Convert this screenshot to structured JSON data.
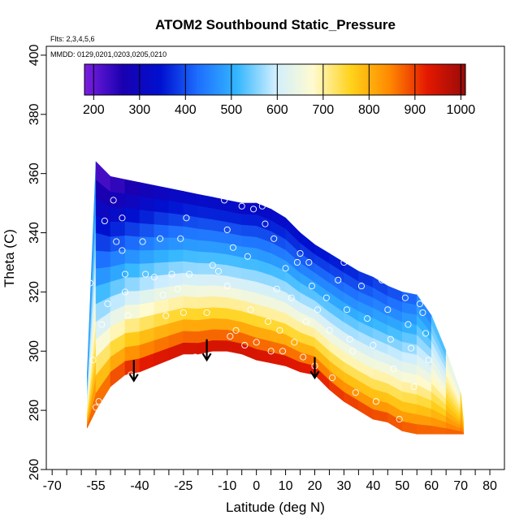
{
  "chart_data": {
    "type": "heatmap",
    "title": "ATOM2 Southbound Static_Pressure",
    "notes": {
      "flights": "Flts: 2,3,4,5,6",
      "dates": "MMDD: 0129,0201,0203,0205,0210"
    },
    "xlabel": "Latitude (deg N)",
    "ylabel": "Theta (C)",
    "xlim": [
      -72,
      85
    ],
    "ylim": [
      260,
      403
    ],
    "x_ticks": [
      -70,
      -55,
      -40,
      -25,
      -10,
      0,
      10,
      20,
      30,
      40,
      50,
      60,
      70,
      80
    ],
    "x_minor_ticks": [
      -65,
      -60,
      -50,
      -45,
      -35,
      -30,
      -20,
      -15,
      -5,
      5,
      15,
      25,
      35,
      45,
      55,
      65,
      75
    ],
    "y_ticks": [
      260,
      280,
      300,
      320,
      340,
      360,
      380,
      400
    ],
    "colorbar": {
      "range": [
        180,
        1010
      ],
      "ticks": [
        200,
        300,
        400,
        500,
        600,
        700,
        800,
        900,
        1000
      ],
      "colors": [
        "#7b1fe0",
        "#1a00b0",
        "#0010d0",
        "#1e70ff",
        "#33b6ff",
        "#cfeeff",
        "#fffbd0",
        "#ffd21a",
        "#ff8a00",
        "#e41800",
        "#980a0a"
      ],
      "placement": "top"
    },
    "grid": false,
    "profile": {
      "latitude": [
        -58,
        -55,
        -50,
        -45,
        -40,
        -35,
        -30,
        -25,
        -20,
        -15,
        -10,
        -5,
        0,
        5,
        10,
        15,
        20,
        25,
        30,
        35,
        40,
        45,
        50,
        55,
        60,
        65,
        70,
        71
      ],
      "theta_top": [
        292,
        364,
        359,
        358,
        357,
        356,
        355,
        354,
        353,
        352,
        351,
        350,
        350,
        348,
        345,
        340,
        336,
        333,
        330,
        327,
        325,
        322,
        320,
        319,
        312,
        300,
        286,
        276
      ],
      "theta_bottom": [
        274,
        280,
        288,
        292,
        293,
        295,
        297,
        299,
        299,
        300,
        300,
        299,
        297,
        296,
        295,
        293,
        292,
        287,
        283,
        280,
        277,
        276,
        273,
        272,
        272,
        272,
        272,
        272
      ],
      "pressure_at_top": [
        720,
        200,
        215,
        235,
        250,
        275,
        290,
        300,
        305,
        305,
        305,
        305,
        300,
        305,
        310,
        320,
        330,
        335,
        345,
        355,
        370,
        380,
        395,
        420,
        470,
        560,
        700,
        820
      ],
      "pressure_at_bottom": [
        900,
        910,
        930,
        960,
        980,
        990,
        995,
        1000,
        1000,
        1000,
        1000,
        1000,
        1000,
        995,
        990,
        985,
        980,
        960,
        950,
        940,
        935,
        930,
        920,
        915,
        905,
        900,
        890,
        880
      ]
    },
    "observations": [
      {
        "x": -57,
        "y": 323
      },
      {
        "x": -56,
        "y": 297
      },
      {
        "x": -55,
        "y": 281
      },
      {
        "x": -54,
        "y": 283
      },
      {
        "x": -53,
        "y": 309
      },
      {
        "x": -51,
        "y": 316
      },
      {
        "x": -52,
        "y": 344
      },
      {
        "x": -49,
        "y": 351
      },
      {
        "x": -48,
        "y": 337
      },
      {
        "x": -46,
        "y": 345
      },
      {
        "x": -46,
        "y": 334
      },
      {
        "x": -45,
        "y": 326
      },
      {
        "x": -45,
        "y": 320
      },
      {
        "x": -44,
        "y": 312
      },
      {
        "x": -43,
        "y": 292
      },
      {
        "x": -39,
        "y": 337
      },
      {
        "x": -38,
        "y": 326
      },
      {
        "x": -36,
        "y": 292
      },
      {
        "x": -35,
        "y": 325
      },
      {
        "x": -33,
        "y": 338
      },
      {
        "x": -32,
        "y": 319
      },
      {
        "x": -31,
        "y": 312
      },
      {
        "x": -30,
        "y": 295
      },
      {
        "x": -29,
        "y": 326
      },
      {
        "x": -27,
        "y": 321
      },
      {
        "x": -26,
        "y": 338
      },
      {
        "x": -25,
        "y": 313
      },
      {
        "x": -24,
        "y": 345
      },
      {
        "x": -23,
        "y": 326
      },
      {
        "x": -21,
        "y": 298
      },
      {
        "x": -17,
        "y": 313
      },
      {
        "x": -15,
        "y": 329
      },
      {
        "x": -13,
        "y": 327
      },
      {
        "x": -11,
        "y": 351
      },
      {
        "x": -10,
        "y": 341
      },
      {
        "x": -10,
        "y": 322
      },
      {
        "x": -9,
        "y": 305
      },
      {
        "x": -8,
        "y": 335
      },
      {
        "x": -7,
        "y": 307
      },
      {
        "x": -5,
        "y": 349
      },
      {
        "x": -4,
        "y": 302
      },
      {
        "x": -3,
        "y": 332
      },
      {
        "x": -2,
        "y": 314
      },
      {
        "x": -1,
        "y": 348
      },
      {
        "x": 0,
        "y": 303
      },
      {
        "x": 2,
        "y": 349
      },
      {
        "x": 3,
        "y": 343
      },
      {
        "x": 4,
        "y": 310
      },
      {
        "x": 5,
        "y": 300
      },
      {
        "x": 6,
        "y": 338
      },
      {
        "x": 7,
        "y": 321
      },
      {
        "x": 8,
        "y": 307
      },
      {
        "x": 9,
        "y": 300
      },
      {
        "x": 10,
        "y": 328
      },
      {
        "x": 11,
        "y": 348
      },
      {
        "x": 12,
        "y": 318
      },
      {
        "x": 13,
        "y": 303
      },
      {
        "x": 14,
        "y": 330
      },
      {
        "x": 15,
        "y": 333
      },
      {
        "x": 16,
        "y": 298
      },
      {
        "x": 17,
        "y": 310
      },
      {
        "x": 18,
        "y": 330
      },
      {
        "x": 19,
        "y": 322
      },
      {
        "x": 20,
        "y": 295
      },
      {
        "x": 21,
        "y": 314
      },
      {
        "x": 23,
        "y": 336
      },
      {
        "x": 24,
        "y": 318
      },
      {
        "x": 25,
        "y": 307
      },
      {
        "x": 26,
        "y": 291
      },
      {
        "x": 28,
        "y": 324
      },
      {
        "x": 30,
        "y": 330
      },
      {
        "x": 31,
        "y": 314
      },
      {
        "x": 32,
        "y": 304
      },
      {
        "x": 33,
        "y": 300
      },
      {
        "x": 34,
        "y": 286
      },
      {
        "x": 36,
        "y": 322
      },
      {
        "x": 38,
        "y": 311
      },
      {
        "x": 40,
        "y": 302
      },
      {
        "x": 41,
        "y": 283
      },
      {
        "x": 43,
        "y": 324
      },
      {
        "x": 45,
        "y": 314
      },
      {
        "x": 46,
        "y": 304
      },
      {
        "x": 47,
        "y": 294
      },
      {
        "x": 49,
        "y": 277
      },
      {
        "x": 51,
        "y": 318
      },
      {
        "x": 52,
        "y": 309
      },
      {
        "x": 53,
        "y": 301
      },
      {
        "x": 54,
        "y": 288
      },
      {
        "x": 56,
        "y": 316
      },
      {
        "x": 57,
        "y": 313
      },
      {
        "x": 58,
        "y": 306
      },
      {
        "x": 59,
        "y": 297
      }
    ],
    "arrows": [
      {
        "x": -42,
        "y_top": 297,
        "y_bottom": 290
      },
      {
        "x": -17,
        "y_top": 304,
        "y_bottom": 297
      },
      {
        "x": 20,
        "y_top": 298,
        "y_bottom": 291
      }
    ]
  }
}
